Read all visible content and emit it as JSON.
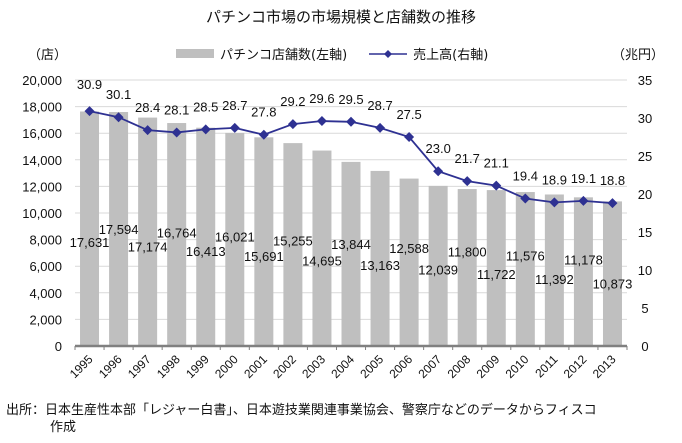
{
  "chart_data": {
    "type": "bar+line",
    "title": "パチンコ市場の市場規模と店舗数の推移",
    "left_axis_unit": "（店）",
    "right_axis_unit": "（兆円）",
    "categories": [
      "1995",
      "1996",
      "1997",
      "1998",
      "1999",
      "2000",
      "2001",
      "2002",
      "2003",
      "2004",
      "2005",
      "2006",
      "2007",
      "2008",
      "2009",
      "2010",
      "2011",
      "2012",
      "2013"
    ],
    "series": [
      {
        "name": "パチンコ店舗数(左軸)",
        "type": "bar",
        "axis": "left",
        "color": "#bfbfbf",
        "values": [
          17631,
          17594,
          17174,
          16764,
          16413,
          16021,
          15691,
          15255,
          14695,
          13844,
          13163,
          12588,
          12039,
          11800,
          11722,
          11576,
          11392,
          11178,
          10873
        ],
        "labels": [
          "17,631",
          "17,594",
          "17,174",
          "16,764",
          "16,413",
          "16,021",
          "15,691",
          "15,255",
          "14,695",
          "13,844",
          "13,163",
          "12,588",
          "12,039",
          "11,800",
          "11,722",
          "11,576",
          "11,392",
          "11,178",
          "10,873"
        ]
      },
      {
        "name": "売上高(右軸)",
        "type": "line",
        "axis": "right",
        "color": "#2e3192",
        "marker": "diamond",
        "values": [
          30.9,
          30.1,
          28.4,
          28.1,
          28.5,
          28.7,
          27.8,
          29.2,
          29.6,
          29.5,
          28.7,
          27.5,
          23.0,
          21.7,
          21.1,
          19.4,
          18.9,
          19.1,
          18.8
        ],
        "labels": [
          "30.9",
          "30.1",
          "28.4",
          "28.1",
          "28.5",
          "28.7",
          "27.8",
          "29.2",
          "29.6",
          "29.5",
          "28.7",
          "27.5",
          "23.0",
          "21.7",
          "21.1",
          "19.4",
          "18.9",
          "19.1",
          "18.8"
        ]
      }
    ],
    "left_axis": {
      "min": 0,
      "max": 20000,
      "step": 2000,
      "ticks": [
        "0",
        "2,000",
        "4,000",
        "6,000",
        "8,000",
        "10,000",
        "12,000",
        "14,000",
        "16,000",
        "18,000",
        "20,000"
      ]
    },
    "right_axis": {
      "min": 0,
      "max": 35,
      "step": 5,
      "ticks": [
        "0",
        "5",
        "10",
        "15",
        "20",
        "25",
        "30",
        "35"
      ]
    },
    "grid": true,
    "legend_position": "top-center",
    "source_note_line1": "出所：日本生産性本部「レジャー白書」、日本遊技業関連事業協会、警察庁などのデータからフィスコ",
    "source_note_line2": "作成"
  }
}
